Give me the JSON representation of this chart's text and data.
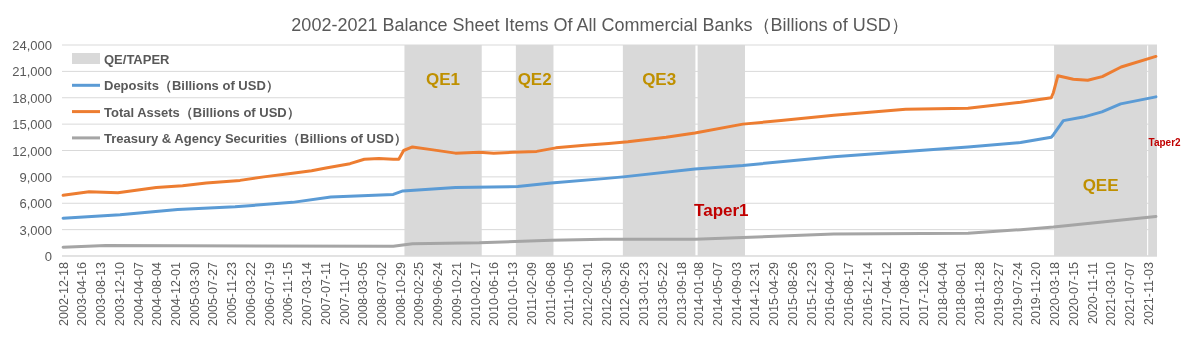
{
  "chart_data": {
    "type": "line",
    "title": "2002-2021 Balance Sheet Items Of All Commercial Banks（Billions of USD）",
    "annotations": [
      "QE/TAPER"
    ],
    "series": [
      {
        "name": "Deposits（Billions of USD）",
        "color": "#5b9bd5",
        "x": [
          "2002-12-18",
          "2003-12-15",
          "2004-12-15",
          "2005-12-15",
          "2006-12-15",
          "2007-08-15",
          "2008-09-15",
          "2008-11-15",
          "2009-10-15",
          "2010-11-15",
          "2011-06-15",
          "2012-05-15",
          "2012-09-15",
          "2013-12-15",
          "2014-10-15",
          "2016-05-15",
          "2017-08-15",
          "2018-09-15",
          "2019-08-15",
          "2020-02-26",
          "2020-03-11",
          "2020-05-13",
          "2020-09-16",
          "2021-01-13",
          "2021-05-12",
          "2021-12-22"
        ],
        "values": [
          4300,
          4700,
          5300,
          5600,
          6100,
          6700,
          7000,
          7400,
          7800,
          7900,
          8300,
          8800,
          9000,
          9900,
          10300,
          11300,
          11900,
          12400,
          12900,
          13500,
          13800,
          15400,
          15800,
          16400,
          17300,
          18100
        ]
      },
      {
        "name": "Total Assets（Billions of USD）",
        "color": "#ed7d31",
        "x": [
          "2002-12-18",
          "2003-06-01",
          "2003-12-01",
          "2004-08-01",
          "2005-01-15",
          "2005-06-15",
          "2006-01-15",
          "2006-06-15",
          "2006-12-15",
          "2007-04-15",
          "2007-07-15",
          "2007-12-15",
          "2008-03-15",
          "2008-06-15",
          "2008-09-15",
          "2008-10-20",
          "2008-11-20",
          "2009-01-15",
          "2009-05-15",
          "2009-10-15",
          "2010-03-15",
          "2010-06-15",
          "2010-10-15",
          "2011-03-15",
          "2011-07-15",
          "2012-01-15",
          "2012-06-15",
          "2012-10-15",
          "2013-06-15",
          "2013-12-15",
          "2014-10-15",
          "2015-06-15",
          "2016-05-15",
          "2017-08-15",
          "2018-09-15",
          "2019-08-15",
          "2020-02-26",
          "2020-03-11",
          "2020-04-08",
          "2020-07-15",
          "2020-10-15",
          "2021-01-15",
          "2021-05-15",
          "2021-12-22"
        ],
        "values": [
          6900,
          7300,
          7200,
          7800,
          8000,
          8300,
          8600,
          9000,
          9400,
          9700,
          10000,
          10500,
          11000,
          11100,
          11000,
          11000,
          12000,
          12400,
          12100,
          11700,
          11800,
          11700,
          11800,
          11900,
          12300,
          12600,
          12800,
          13000,
          13500,
          14000,
          15000,
          15400,
          16000,
          16700,
          16800,
          17500,
          18000,
          18600,
          20500,
          20100,
          20000,
          20400,
          21500,
          22700
        ]
      },
      {
        "name": "Treasury & Agency Securities（Billions of USD）",
        "color": "#a5a5a5",
        "x": [
          "2002-12-18",
          "2003-09-15",
          "2008-09-15",
          "2009-01-15",
          "2010-03-15",
          "2011-06-15",
          "2012-05-15",
          "2013-12-15",
          "2014-10-15",
          "2016-05-15",
          "2018-09-15",
          "2019-08-15",
          "2020-03-11",
          "2021-12-22"
        ],
        "values": [
          1000,
          1200,
          1100,
          1400,
          1500,
          1800,
          1900,
          1900,
          2100,
          2500,
          2600,
          3000,
          3300,
          4500
        ]
      }
    ],
    "bands": [
      {
        "axis": "x",
        "from": "2008-11-25",
        "to": "2010-03-31",
        "label": "QE1",
        "color": "#d9d9d9"
      },
      {
        "axis": "x",
        "from": "2010-11-03",
        "to": "2011-06-30",
        "label": "QE2",
        "color": "#d9d9d9"
      },
      {
        "axis": "x",
        "from": "2012-09-13",
        "to": "2013-12-18",
        "label": "QE3",
        "color": "#d9d9d9"
      },
      {
        "axis": "x",
        "from": "2014-01-01",
        "to": "2014-10-29",
        "label": "Taper1",
        "color": "#d9d9d9"
      },
      {
        "axis": "x",
        "from": "2020-03-15",
        "to": "2021-10-27",
        "label": "QEE",
        "color": "#d9d9d9"
      },
      {
        "axis": "x",
        "from": "2021-11-03",
        "to": "2021-12-29",
        "label": "Taper2",
        "color": "#d9d9d9"
      }
    ],
    "xlim": [
      "2002-12-11",
      "2021-12-29"
    ],
    "xticks": [
      "2002-12-18",
      "2003-04-16",
      "2003-08-13",
      "2003-12-10",
      "2004-04-07",
      "2004-08-04",
      "2004-12-01",
      "2005-03-30",
      "2005-07-27",
      "2005-11-23",
      "2006-03-22",
      "2006-07-19",
      "2006-11-15",
      "2007-03-14",
      "2007-07-11",
      "2007-11-07",
      "2008-03-05",
      "2008-07-02",
      "2008-10-29",
      "2009-02-25",
      "2009-06-24",
      "2009-10-21",
      "2010-02-17",
      "2010-06-16",
      "2010-10-13",
      "2011-02-09",
      "2011-06-08",
      "2011-10-05",
      "2012-02-01",
      "2012-05-30",
      "2012-09-26",
      "2013-01-23",
      "2013-05-22",
      "2013-09-18",
      "2014-01-08",
      "2014-05-07",
      "2014-09-03",
      "2014-12-31",
      "2015-04-29",
      "2015-08-26",
      "2015-12-23",
      "2016-04-20",
      "2016-08-17",
      "2016-12-14",
      "2017-04-12",
      "2017-08-09",
      "2017-12-06",
      "2018-04-04",
      "2018-08-01",
      "2018-11-28",
      "2019-03-27",
      "2019-07-24",
      "2019-11-20",
      "2020-03-18",
      "2020-07-15",
      "2020-11-11",
      "2021-03-10",
      "2021-07-07",
      "2021-11-03"
    ],
    "ylim": [
      0,
      24000
    ],
    "yticks": [
      0,
      {
        "value": 3000,
        "label": "3,000"
      },
      {
        "value": 6000,
        "label": "6,000"
      },
      {
        "value": 9000,
        "label": "9,000"
      },
      {
        "value": 12000,
        "label": "12,000"
      },
      {
        "value": 15000,
        "label": "15,000"
      },
      {
        "value": 18000,
        "label": "18,000"
      },
      {
        "value": 21000,
        "label": "21,000"
      },
      {
        "value": 24000,
        "label": "24,000"
      }
    ],
    "grid": "y",
    "legend": "top left"
  }
}
